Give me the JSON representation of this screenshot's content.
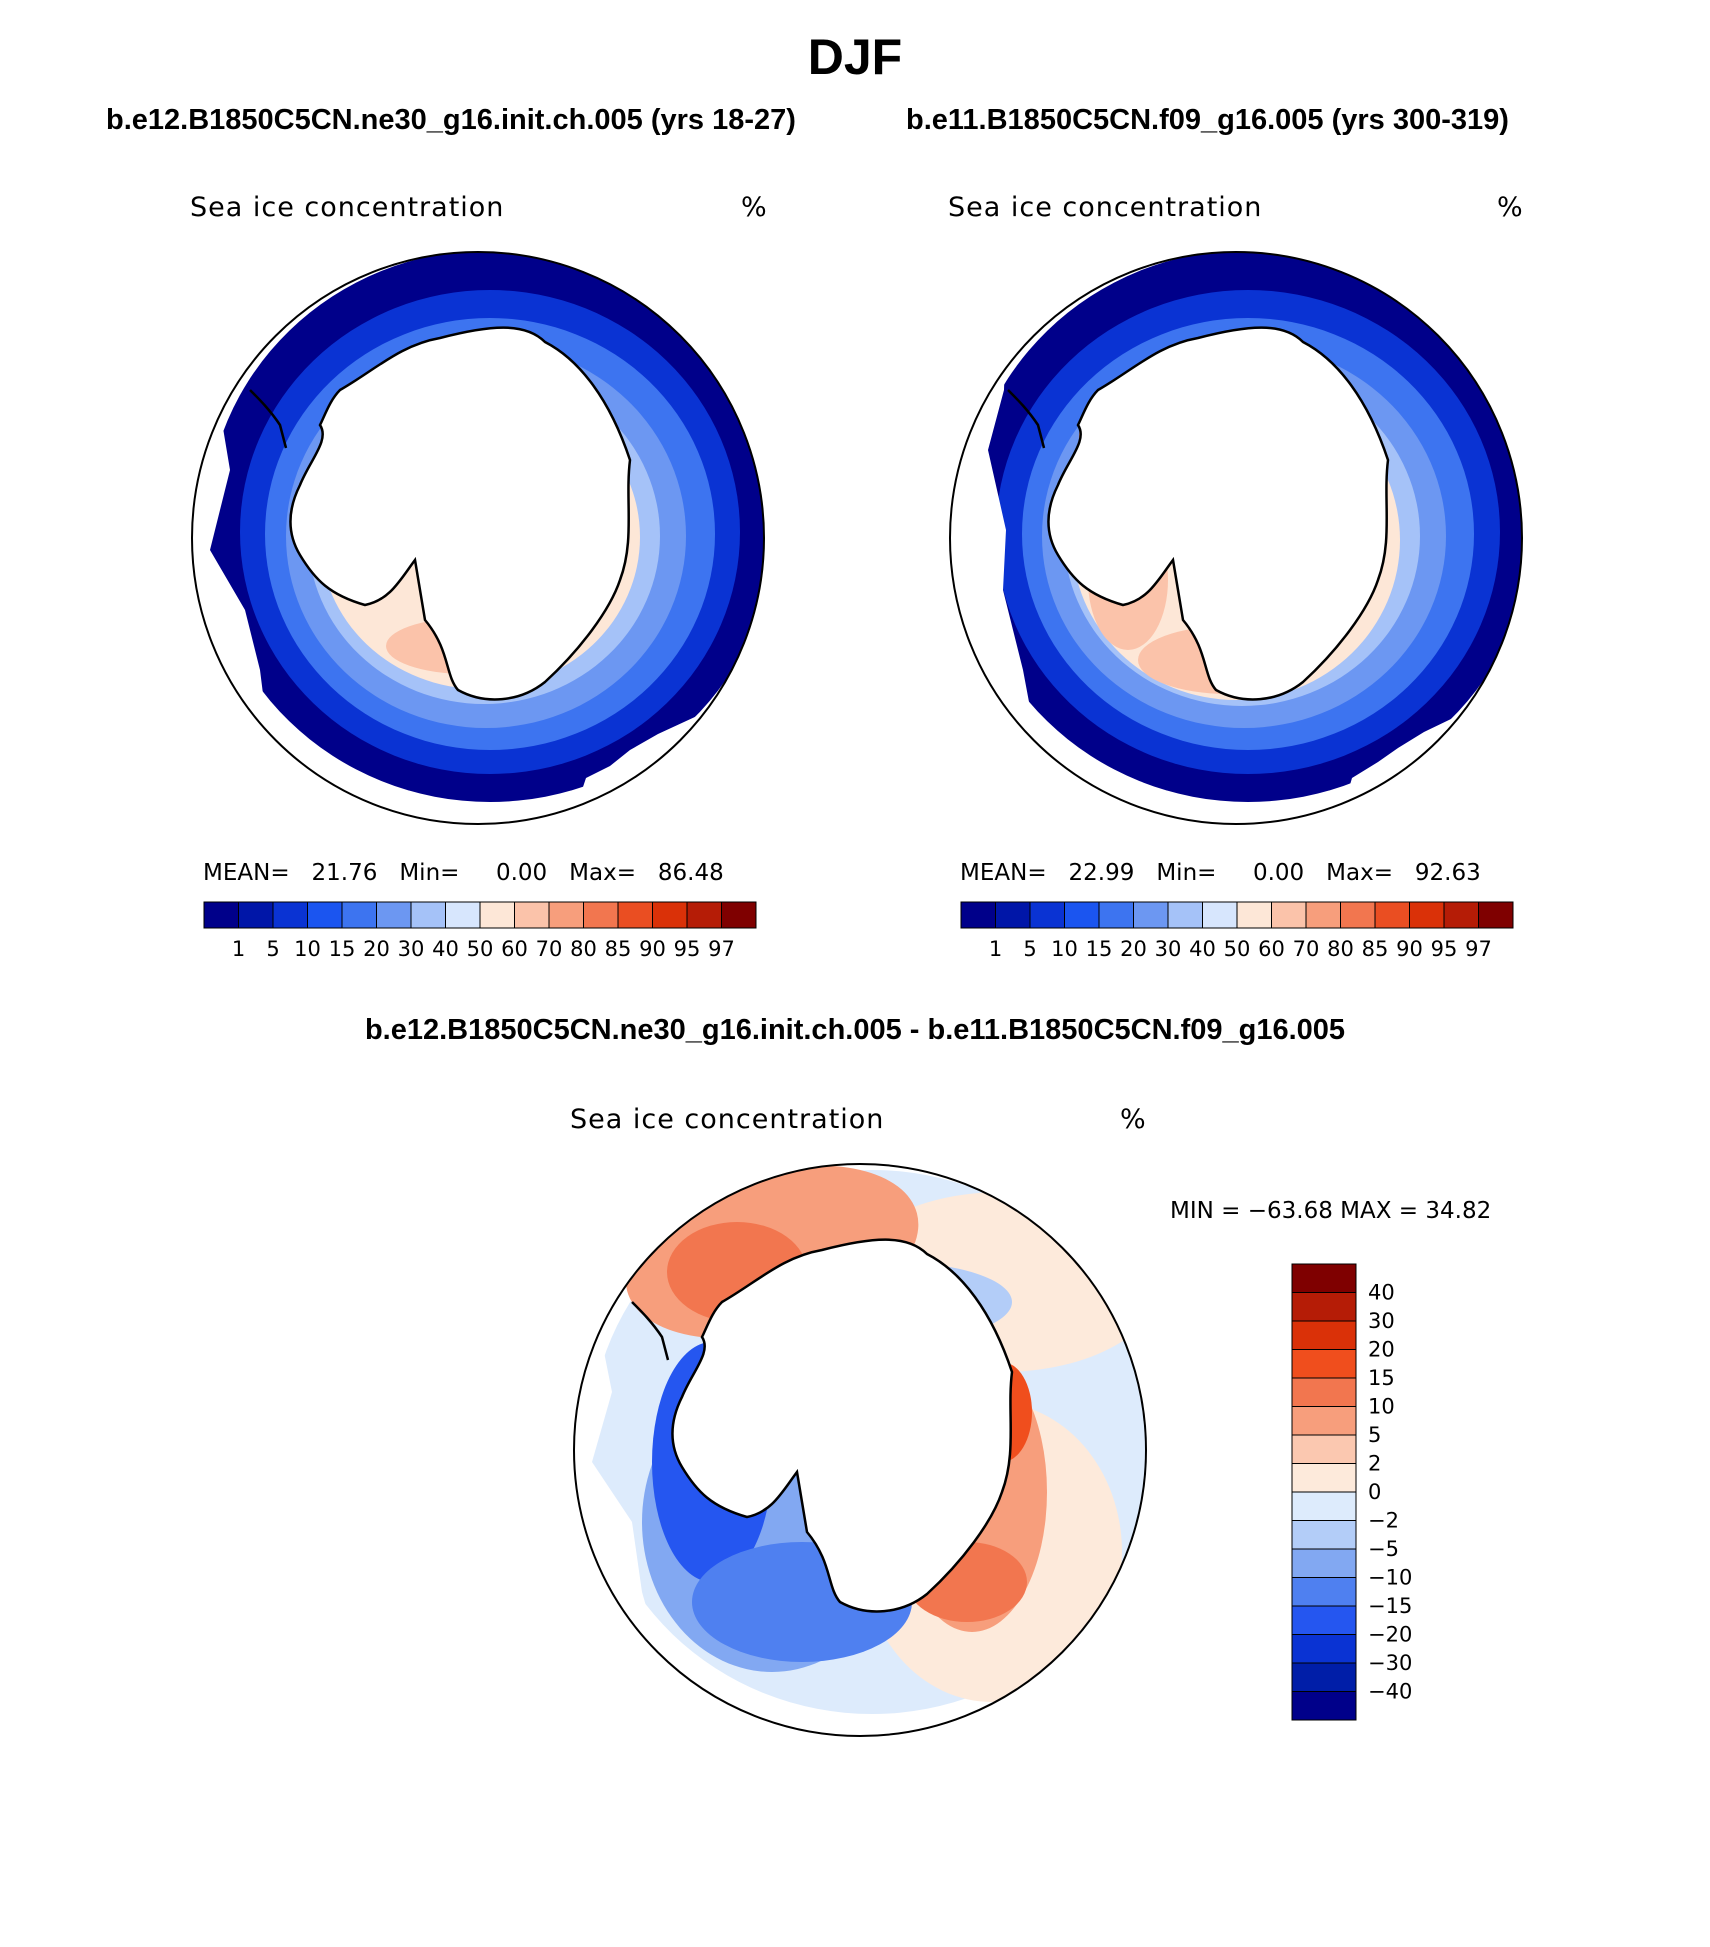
{
  "title": "DJF",
  "panels": [
    {
      "case": "b.e12.B1850C5CN.ne30_g16.init.ch.005 (yrs 18-27)",
      "variable": "Sea ice concentration",
      "units": "%",
      "stats": {
        "mean_label": "MEAN=",
        "mean": "21.76",
        "min_label": "Min=",
        "min": "0.00",
        "max_label": "Max=",
        "max": "86.48"
      }
    },
    {
      "case": "b.e11.B1850C5CN.f09_g16.005 (yrs 300-319)",
      "variable": "Sea ice concentration",
      "units": "%",
      "stats": {
        "mean_label": "MEAN=",
        "mean": "22.99",
        "min_label": "Min=",
        "min": "0.00",
        "max_label": "Max=",
        "max": "92.63"
      }
    }
  ],
  "diff_panel": {
    "title": "b.e12.B1850C5CN.ne30_g16.init.ch.005 - b.e11.B1850C5CN.f09_g16.005",
    "variable": "Sea ice concentration",
    "units": "%",
    "minmax": "MIN = −63.68 MAX =   34.82"
  },
  "colorbar_main": {
    "labels": [
      "1",
      "5",
      "10",
      "15",
      "20",
      "30",
      "40",
      "50",
      "60",
      "70",
      "80",
      "85",
      "90",
      "95",
      "97"
    ],
    "colors": [
      "#00008a",
      "#0016a8",
      "#0a33d3",
      "#1b55f0",
      "#3d74f0",
      "#6c97f2",
      "#a5c2f8",
      "#d7e6fd",
      "#fde7d7",
      "#fbc3aa",
      "#f79e7c",
      "#f2764f",
      "#ea4e22",
      "#da3108",
      "#b51c06",
      "#7f0000"
    ]
  },
  "colorbar_diff": {
    "labels": [
      "40",
      "30",
      "20",
      "15",
      "10",
      "5",
      "2",
      "0",
      "−2",
      "−5",
      "−10",
      "−15",
      "−20",
      "−30",
      "−40"
    ],
    "colors": [
      "#7f0000",
      "#b51c06",
      "#da3108",
      "#f04e1d",
      "#f2764f",
      "#f79e7c",
      "#fbc8b0",
      "#fdeadb",
      "#ddebfc",
      "#b3cdf8",
      "#82a8f2",
      "#4f80f0",
      "#2556f0",
      "#0a33d3",
      "#001ea8",
      "#00008a"
    ]
  }
}
